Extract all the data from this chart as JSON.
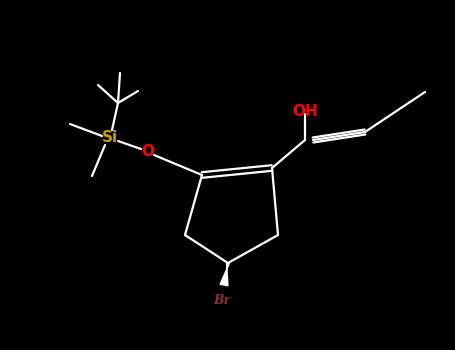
{
  "background_color": "#000000",
  "bond_color": "#ffffff",
  "si_color": "#c8a000",
  "o_color": "#ff0000",
  "br_color": "#8b3030",
  "figsize": [
    4.55,
    3.5
  ],
  "dpi": 100,
  "si_label": "Si",
  "o_label": "O",
  "oh_label": "OH",
  "br_label": "Br",
  "title": ""
}
